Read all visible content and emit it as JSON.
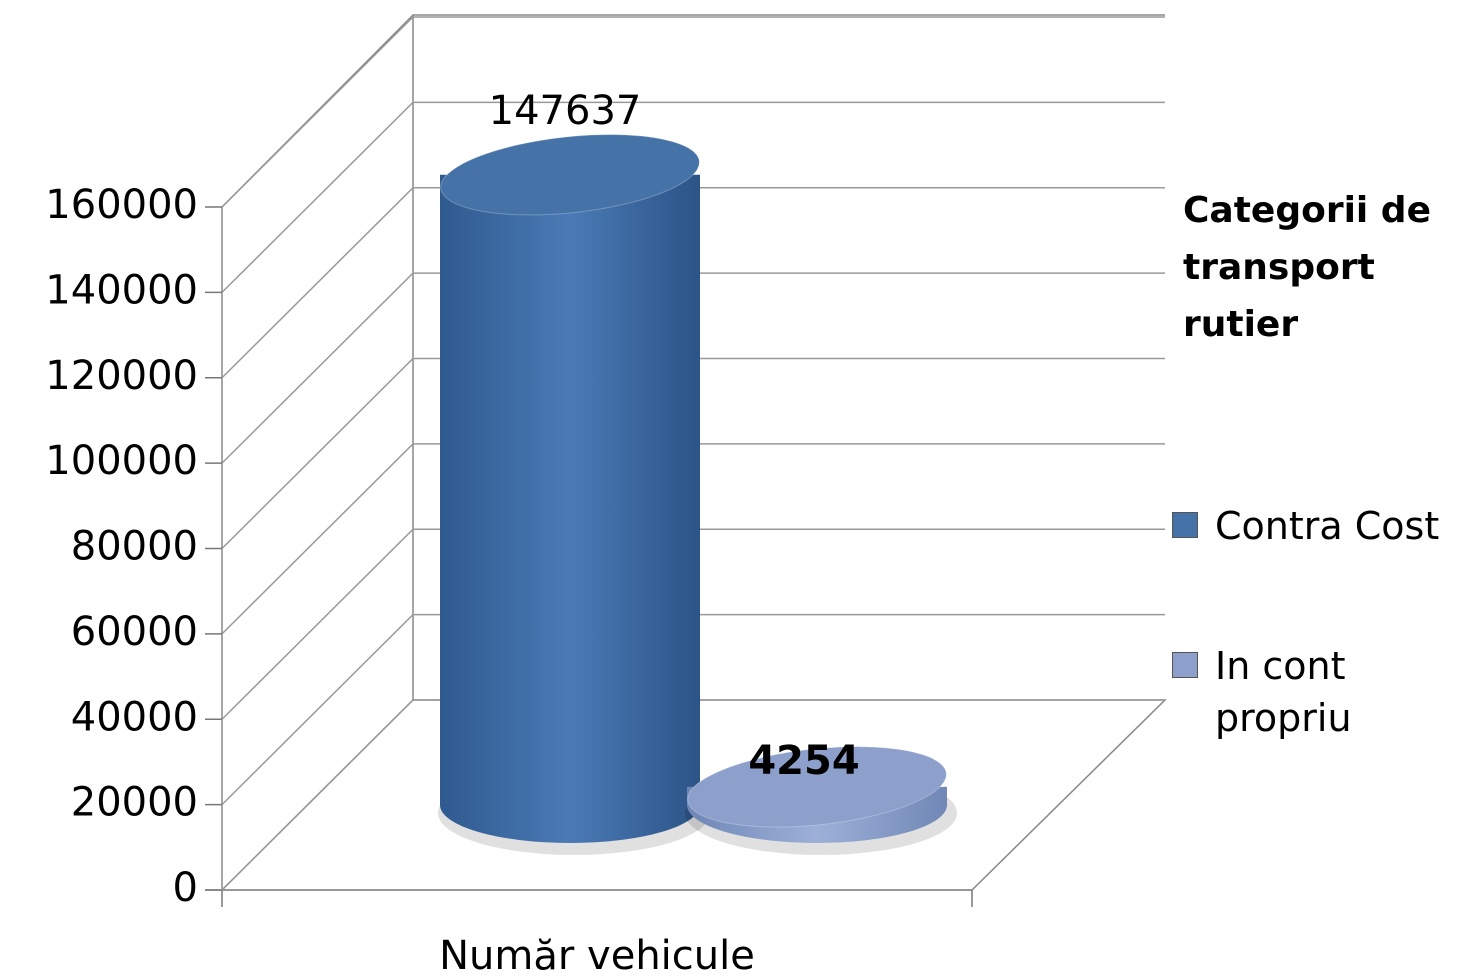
{
  "chart_data": {
    "type": "bar3d",
    "categories": [
      "Număr vehicule"
    ],
    "series": [
      {
        "name": "Contra Cost",
        "color": "#4572a7",
        "values": [
          147637
        ],
        "value_labels": [
          "147637"
        ]
      },
      {
        "name": "In cont propriu",
        "color": "#8da0cb",
        "values": [
          4254
        ],
        "value_labels": [
          "4254"
        ]
      }
    ],
    "legend_title": "Categorii de transport rutier",
    "legend": "right",
    "ylim": [
      0,
      160000
    ],
    "yticks": [
      0,
      20000,
      40000,
      60000,
      80000,
      100000,
      120000,
      140000,
      160000
    ],
    "grid": true
  }
}
